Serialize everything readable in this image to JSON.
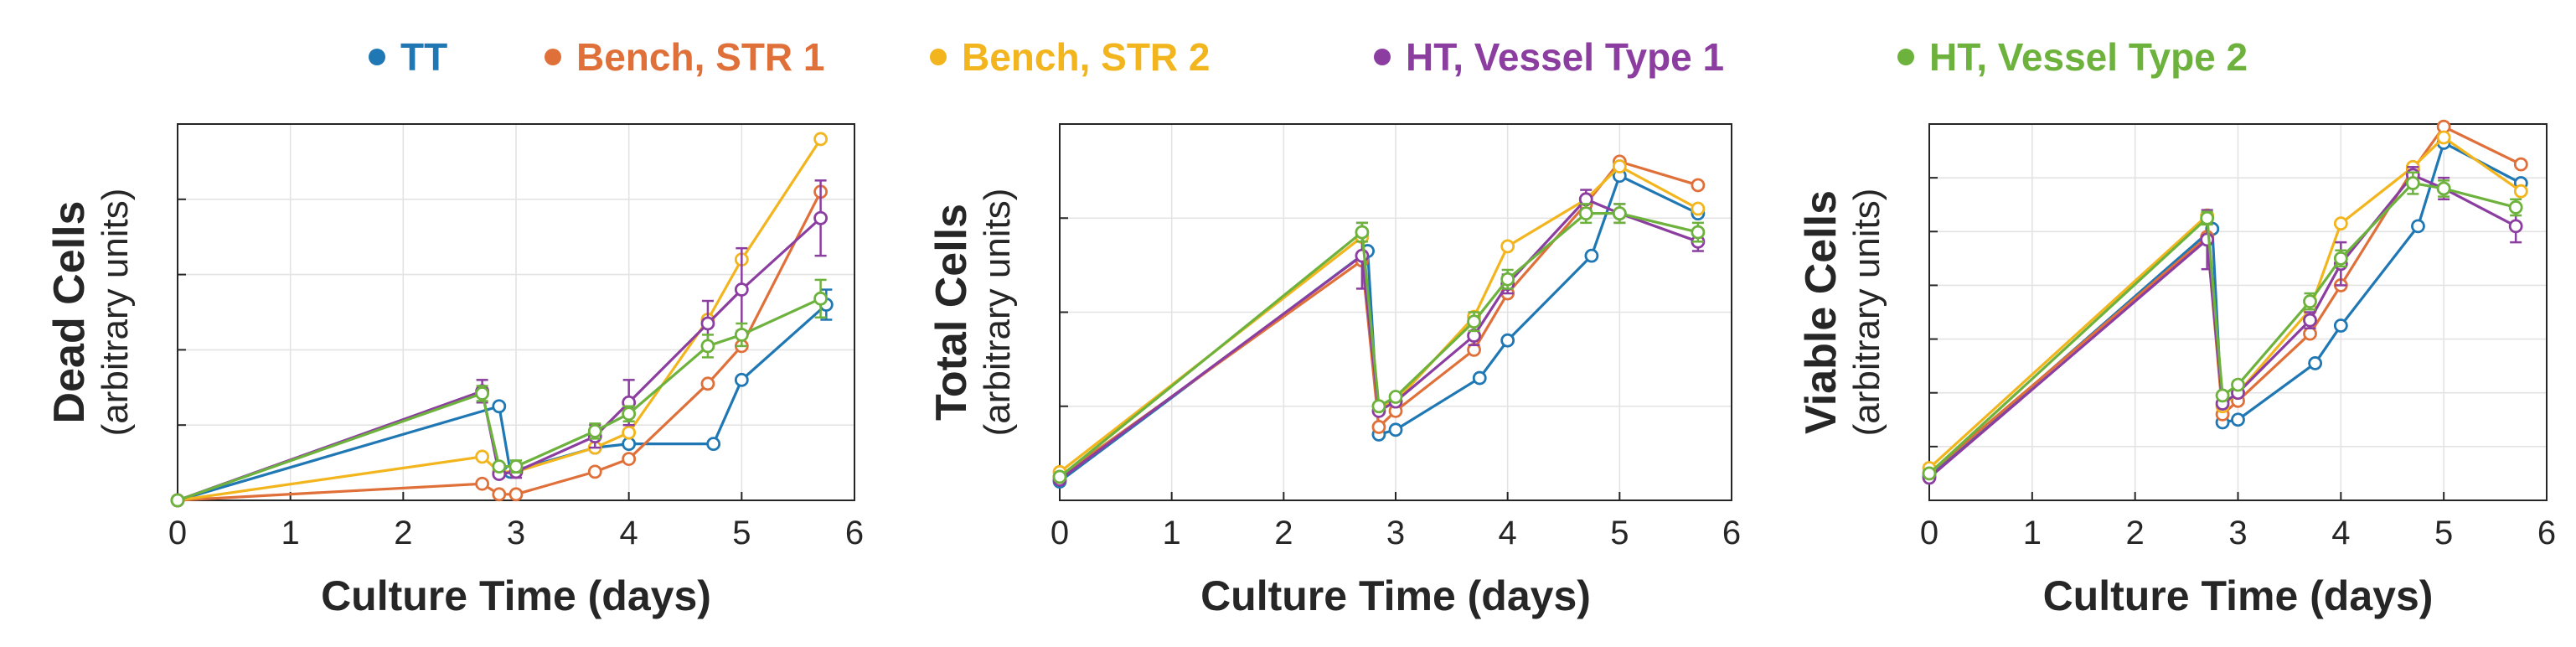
{
  "legend": [
    {
      "label": "TT",
      "color": "#1f77b4"
    },
    {
      "label": "Bench, STR 1",
      "color": "#e0703a"
    },
    {
      "label": "Bench, STR 2",
      "color": "#f2b51d"
    },
    {
      "label": "HT, Vessel Type 1",
      "color": "#8b3ea0"
    },
    {
      "label": "HT, Vessel Type 2",
      "color": "#6db23d"
    }
  ],
  "chart_data": [
    {
      "type": "line",
      "xlabel": "Culture Time (days)",
      "ylabel": "Dead Cells",
      "ylabel_sub": "(arbitrary units)",
      "xlim": [
        0,
        6
      ],
      "xticks": [
        "0",
        "1",
        "2",
        "3",
        "4",
        "5",
        "6"
      ],
      "ylim": [
        0,
        5
      ],
      "yticks": [
        1,
        2,
        3,
        4
      ],
      "ytick_labels_shown": false,
      "grid": true,
      "series": [
        {
          "name": "TT",
          "color": "#1f77b4",
          "x": [
            0,
            2.85,
            2.95,
            3.7,
            4.0,
            4.75,
            5.0,
            5.75
          ],
          "y": [
            0.0,
            1.25,
            0.38,
            0.7,
            0.75,
            0.75,
            1.6,
            2.6
          ],
          "err": [
            0,
            0,
            0,
            0,
            0,
            0,
            0,
            0.2
          ]
        },
        {
          "name": "Bench, STR 1",
          "color": "#e0703a",
          "x": [
            0,
            2.7,
            2.85,
            3.0,
            3.7,
            4.0,
            4.7,
            5.0,
            5.7
          ],
          "y": [
            0.0,
            0.22,
            0.08,
            0.08,
            0.38,
            0.55,
            1.55,
            2.05,
            4.1
          ],
          "err": [
            0,
            0,
            0,
            0,
            0,
            0,
            0,
            0,
            0
          ]
        },
        {
          "name": "Bench, STR 2",
          "color": "#f2b51d",
          "x": [
            0,
            2.7,
            2.85,
            3.0,
            3.7,
            4.0,
            4.7,
            5.0,
            5.7
          ],
          "y": [
            0.0,
            0.58,
            0.38,
            0.38,
            0.7,
            0.9,
            2.4,
            3.2,
            4.8
          ],
          "err": [
            0,
            0,
            0,
            0,
            0,
            0,
            0,
            0,
            0
          ]
        },
        {
          "name": "HT, Vessel Type 1",
          "color": "#8b3ea0",
          "x": [
            0,
            2.7,
            2.85,
            3.0,
            3.7,
            4.0,
            4.7,
            5.0,
            5.7
          ],
          "y": [
            0.0,
            1.45,
            0.35,
            0.38,
            0.85,
            1.3,
            2.35,
            2.8,
            3.75
          ],
          "err": [
            0,
            0.15,
            0,
            0.08,
            0.15,
            0.3,
            0.3,
            0.55,
            0.5
          ]
        },
        {
          "name": "HT, Vessel Type 2",
          "color": "#6db23d",
          "x": [
            0,
            2.7,
            2.85,
            3.0,
            3.7,
            4.0,
            4.7,
            5.0,
            5.7
          ],
          "y": [
            0.0,
            1.42,
            0.45,
            0.45,
            0.92,
            1.15,
            2.05,
            2.2,
            2.68
          ],
          "err": [
            0,
            0.1,
            0,
            0.08,
            0.1,
            0.1,
            0.15,
            0.15,
            0.25
          ]
        }
      ]
    },
    {
      "type": "line",
      "xlabel": "Culture Time (days)",
      "ylabel": "Total Cells",
      "ylabel_sub": "(arbitrary units)",
      "xlim": [
        0,
        6
      ],
      "xticks": [
        "0",
        "1",
        "2",
        "3",
        "4",
        "5",
        "6"
      ],
      "ylim": [
        0,
        4
      ],
      "yticks": [
        1,
        2,
        3
      ],
      "ytick_labels_shown": false,
      "grid": true,
      "series": [
        {
          "name": "TT",
          "color": "#1f77b4",
          "x": [
            0,
            2.75,
            2.85,
            3.0,
            3.75,
            4.0,
            4.75,
            5.0,
            5.7
          ],
          "y": [
            0.2,
            2.65,
            0.7,
            0.75,
            1.3,
            1.7,
            2.6,
            3.45,
            3.05
          ],
          "err": [
            0,
            0,
            0,
            0,
            0,
            0,
            0,
            0,
            0
          ]
        },
        {
          "name": "Bench, STR 1",
          "color": "#e0703a",
          "x": [
            0,
            2.7,
            2.85,
            3.0,
            3.7,
            4.0,
            4.7,
            5.0,
            5.7
          ],
          "y": [
            0.25,
            2.55,
            0.78,
            0.95,
            1.6,
            2.2,
            3.15,
            3.6,
            3.35
          ],
          "err": [
            0,
            0,
            0,
            0,
            0,
            0,
            0,
            0,
            0
          ]
        },
        {
          "name": "Bench, STR 2",
          "color": "#f2b51d",
          "x": [
            0,
            2.7,
            2.85,
            3.0,
            3.7,
            4.0,
            4.7,
            5.0,
            5.7
          ],
          "y": [
            0.3,
            2.8,
            1.0,
            1.05,
            1.95,
            2.7,
            3.2,
            3.55,
            3.1
          ],
          "err": [
            0,
            0,
            0,
            0,
            0,
            0,
            0,
            0,
            0
          ]
        },
        {
          "name": "HT, Vessel Type 1",
          "color": "#8b3ea0",
          "x": [
            0,
            2.7,
            2.85,
            3.0,
            3.7,
            4.0,
            4.7,
            5.0,
            5.7
          ],
          "y": [
            0.22,
            2.6,
            0.95,
            1.05,
            1.75,
            2.3,
            3.2,
            3.05,
            2.75
          ],
          "err": [
            0,
            0.35,
            0,
            0,
            0.1,
            0.1,
            0.1,
            0.1,
            0.1
          ]
        },
        {
          "name": "HT, Vessel Type 2",
          "color": "#6db23d",
          "x": [
            0,
            2.7,
            2.85,
            3.0,
            3.7,
            4.0,
            4.7,
            5.0,
            5.7
          ],
          "y": [
            0.25,
            2.85,
            1.0,
            1.1,
            1.9,
            2.35,
            3.05,
            3.05,
            2.85
          ],
          "err": [
            0,
            0.1,
            0,
            0,
            0.1,
            0.1,
            0.1,
            0.1,
            0.1
          ]
        }
      ]
    },
    {
      "type": "line",
      "xlabel": "Culture Time (days)",
      "ylabel": "Viable Cells",
      "ylabel_sub": "(arbitrary units)",
      "xlim": [
        0,
        6
      ],
      "xticks": [
        "0",
        "1",
        "2",
        "3",
        "4",
        "5",
        "6"
      ],
      "ylim": [
        0,
        7
      ],
      "yticks": [
        1,
        2,
        3,
        4,
        5,
        6
      ],
      "ytick_labels_shown": false,
      "grid": true,
      "series": [
        {
          "name": "TT",
          "color": "#1f77b4",
          "x": [
            0,
            2.75,
            2.85,
            3.0,
            3.75,
            4.0,
            4.75,
            5.0,
            5.75
          ],
          "y": [
            0.45,
            5.05,
            1.45,
            1.5,
            2.55,
            3.25,
            5.1,
            6.65,
            5.9
          ],
          "err": [
            0,
            0,
            0,
            0,
            0,
            0,
            0,
            0,
            0
          ]
        },
        {
          "name": "Bench, STR 1",
          "color": "#e0703a",
          "x": [
            0,
            2.7,
            2.85,
            3.0,
            3.7,
            4.0,
            4.7,
            5.0,
            5.75
          ],
          "y": [
            0.5,
            4.9,
            1.6,
            1.85,
            3.1,
            4.0,
            6.15,
            6.95,
            6.25
          ],
          "err": [
            0,
            0,
            0,
            0,
            0,
            0,
            0,
            0,
            0
          ]
        },
        {
          "name": "Bench, STR 2",
          "color": "#f2b51d",
          "x": [
            0,
            2.7,
            2.85,
            3.0,
            3.7,
            4.0,
            4.7,
            5.0,
            5.75
          ],
          "y": [
            0.6,
            5.3,
            1.75,
            2.0,
            3.55,
            5.15,
            6.2,
            6.75,
            5.75
          ],
          "err": [
            0,
            0,
            0,
            0,
            0,
            0,
            0,
            0,
            0
          ]
        },
        {
          "name": "HT, Vessel Type 1",
          "color": "#8b3ea0",
          "x": [
            0,
            2.7,
            2.85,
            3.0,
            3.7,
            4.0,
            4.7,
            5.0,
            5.7
          ],
          "y": [
            0.42,
            4.85,
            1.8,
            2.0,
            3.35,
            4.4,
            6.05,
            5.8,
            5.1
          ],
          "err": [
            0,
            0.55,
            0,
            0,
            0.15,
            0.4,
            0.15,
            0.2,
            0.3
          ]
        },
        {
          "name": "HT, Vessel Type 2",
          "color": "#6db23d",
          "x": [
            0,
            2.7,
            2.85,
            3.0,
            3.7,
            4.0,
            4.7,
            5.0,
            5.7
          ],
          "y": [
            0.5,
            5.25,
            1.95,
            2.15,
            3.7,
            4.5,
            5.9,
            5.8,
            5.45
          ],
          "err": [
            0,
            0.12,
            0,
            0,
            0.15,
            0.15,
            0.2,
            0.15,
            0.15
          ]
        }
      ]
    }
  ]
}
